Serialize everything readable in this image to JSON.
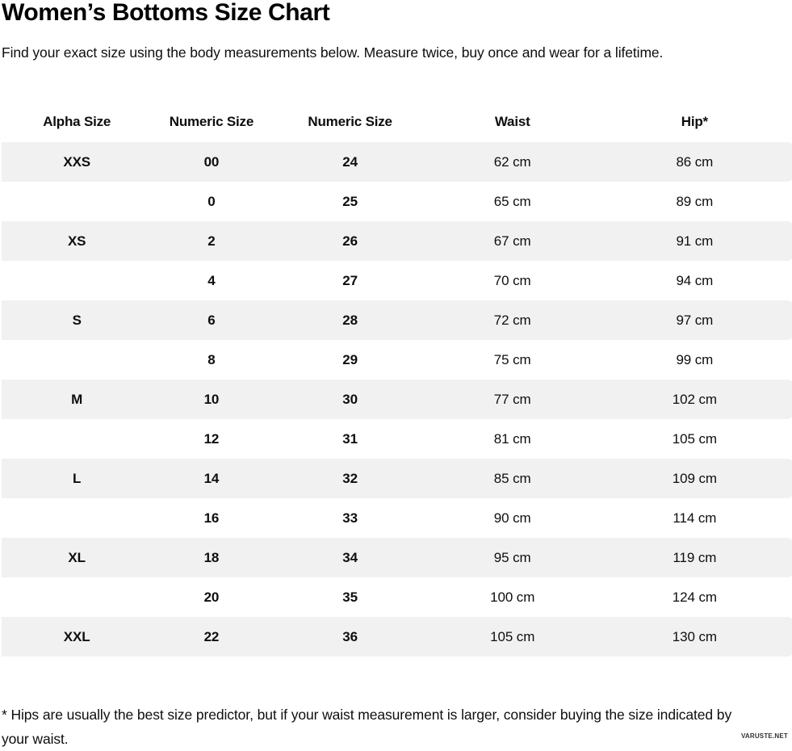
{
  "page": {
    "title": "Women’s Bottoms Size Chart",
    "subtitle": "Find your exact size using the body measurements below. Measure twice, buy once and wear for a lifetime.",
    "footnote": "* Hips are usually the best size predictor, but if your waist measurement is larger, consider buying the size indicated by your waist.",
    "watermark": "VARUSTE.NET"
  },
  "colors": {
    "stripe": "#f1f1f1",
    "text": "#0e0e0e"
  },
  "chart_data": {
    "type": "table",
    "title": "Women’s Bottoms Size Chart",
    "columns": [
      "Alpha Size",
      "Numeric Size",
      "Numeric Size",
      "Waist",
      "Hip*"
    ],
    "rows": [
      [
        "XXS",
        "00",
        "24",
        "62 cm",
        "86 cm"
      ],
      [
        "",
        "0",
        "25",
        "65 cm",
        "89 cm"
      ],
      [
        "XS",
        "2",
        "26",
        "67 cm",
        "91 cm"
      ],
      [
        "",
        "4",
        "27",
        "70 cm",
        "94 cm"
      ],
      [
        "S",
        "6",
        "28",
        "72 cm",
        "97 cm"
      ],
      [
        "",
        "8",
        "29",
        "75 cm",
        "99 cm"
      ],
      [
        "M",
        "10",
        "30",
        "77 cm",
        "102 cm"
      ],
      [
        "",
        "12",
        "31",
        "81 cm",
        "105 cm"
      ],
      [
        "L",
        "14",
        "32",
        "85 cm",
        "109 cm"
      ],
      [
        "",
        "16",
        "33",
        "90 cm",
        "114 cm"
      ],
      [
        "XL",
        "18",
        "34",
        "95 cm",
        "119 cm"
      ],
      [
        "",
        "20",
        "35",
        "100 cm",
        "124 cm"
      ],
      [
        "XXL",
        "22",
        "36",
        "105 cm",
        "130 cm"
      ]
    ],
    "layout": {
      "striped": true,
      "stripe_rows": "odd (1st, 3rd, ...)",
      "grid": false
    }
  }
}
